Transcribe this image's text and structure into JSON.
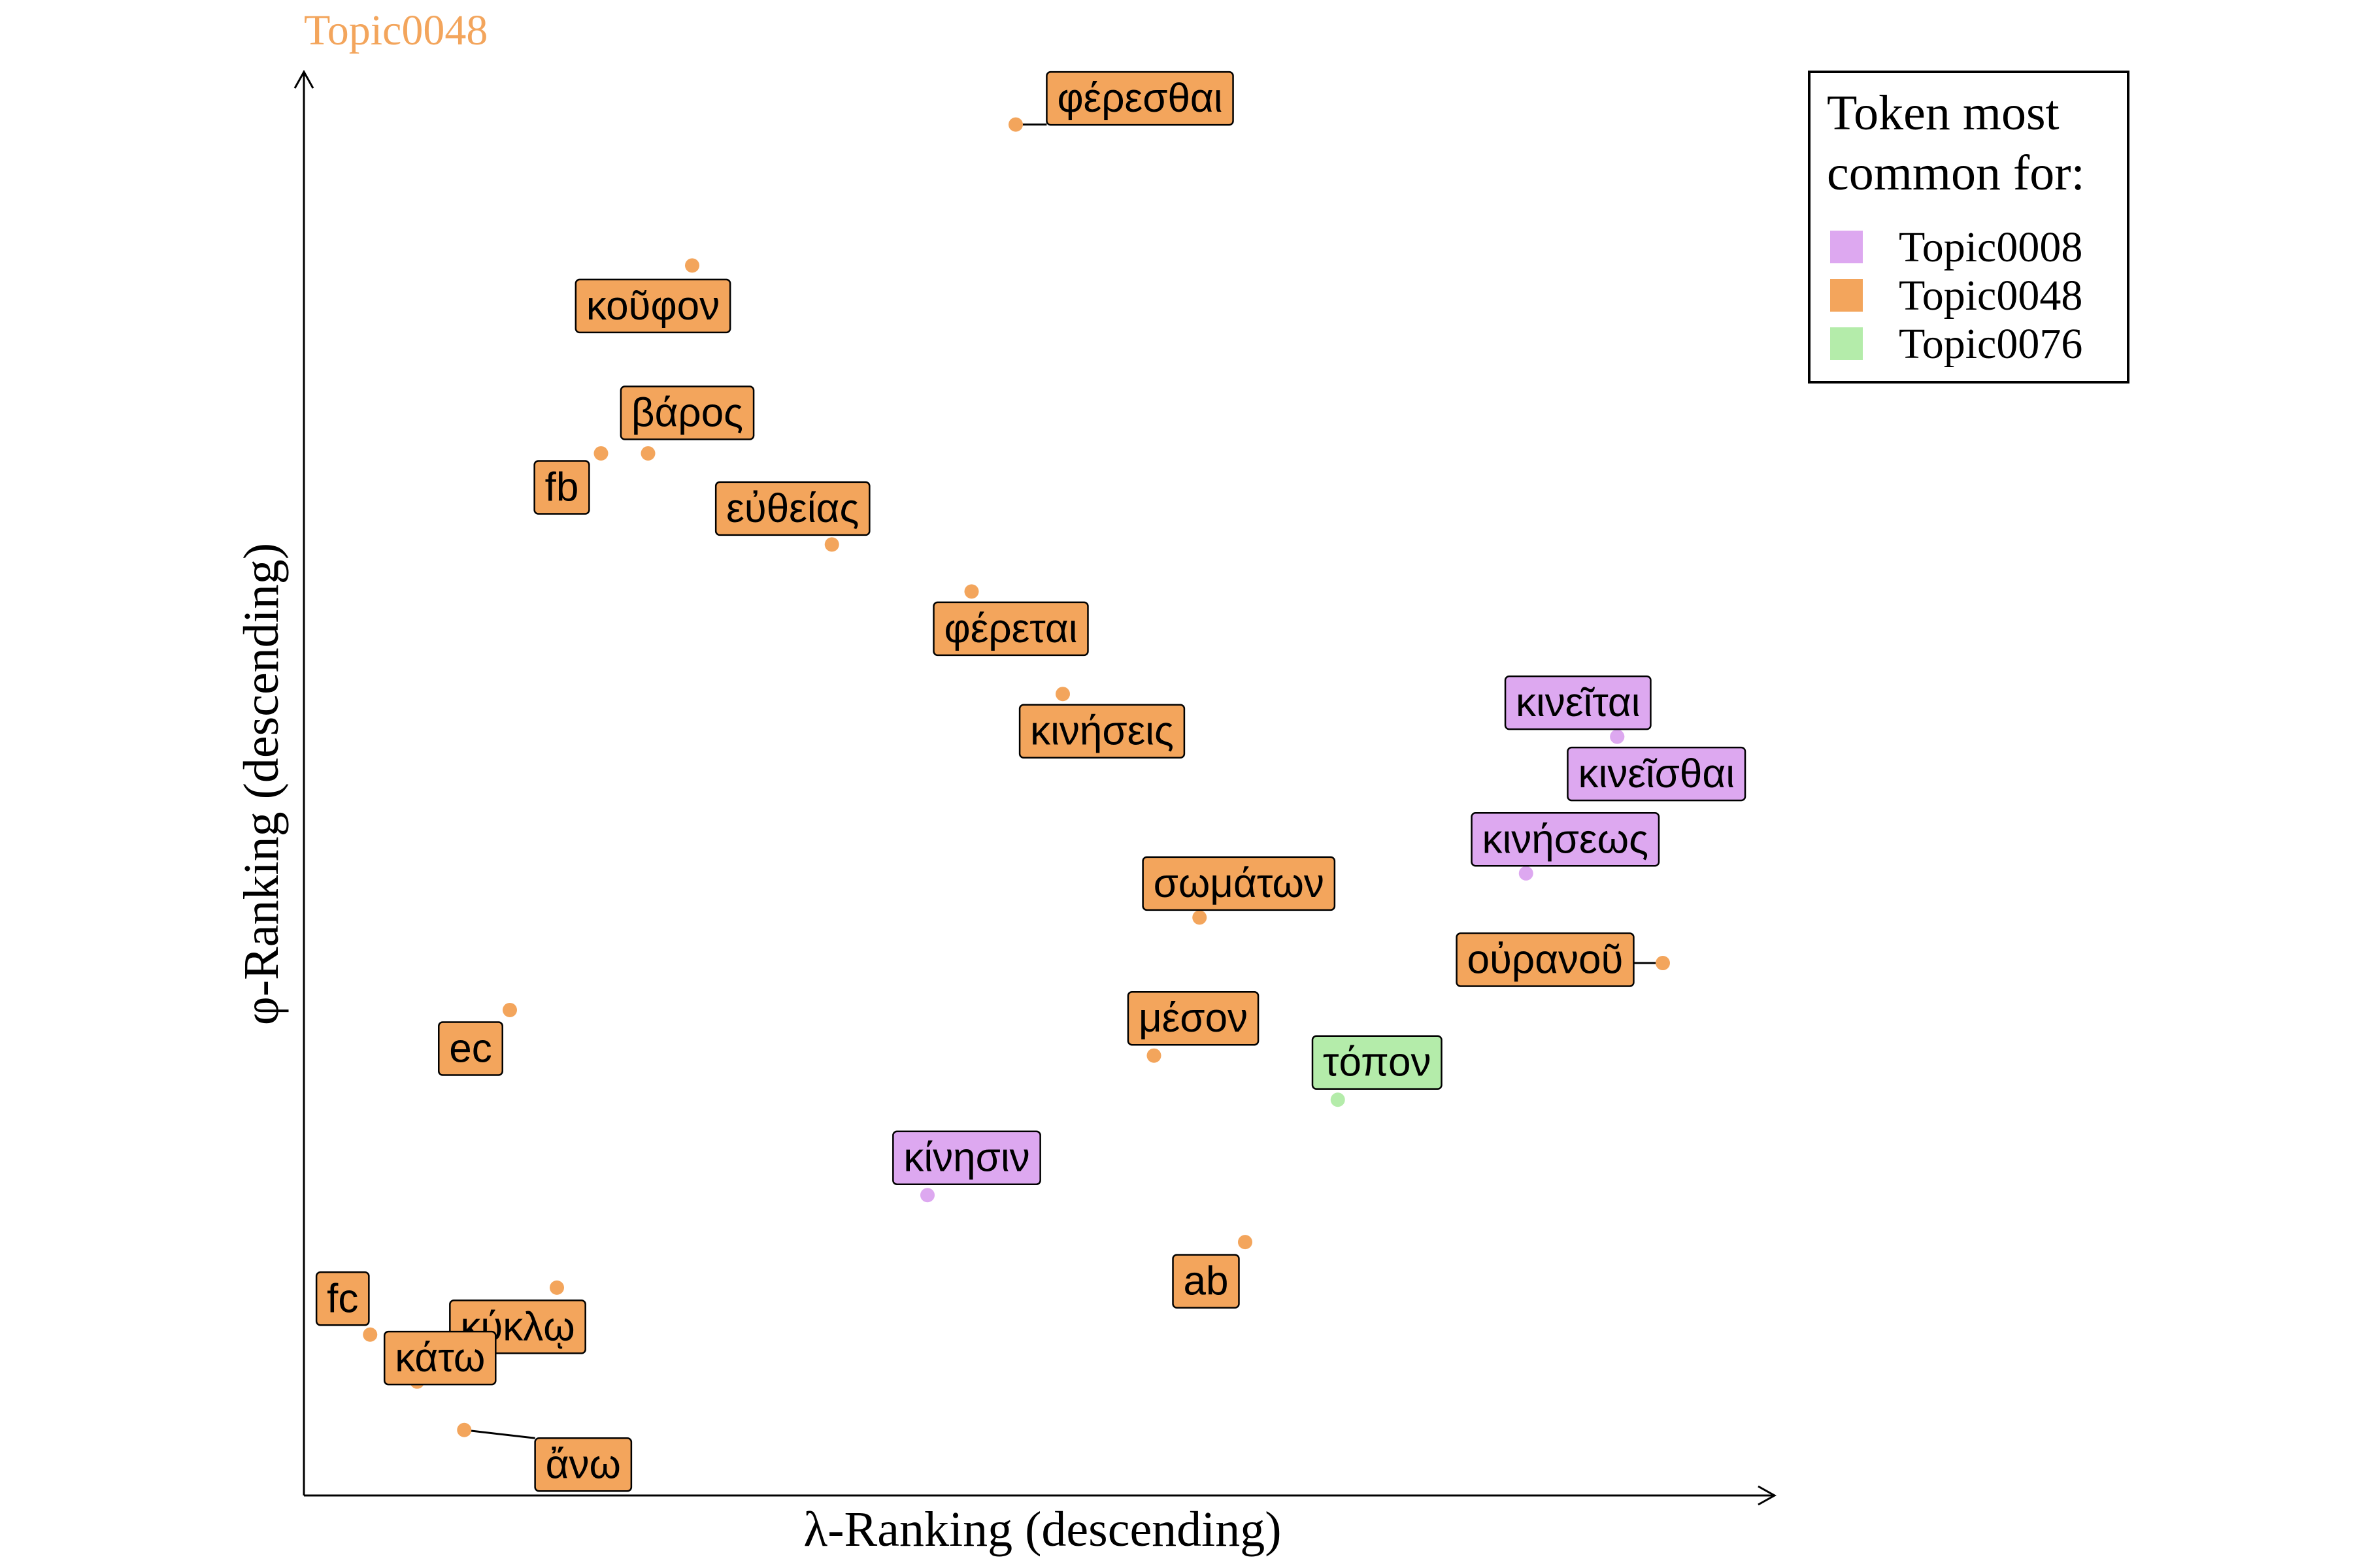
{
  "chart_data": {
    "type": "scatter",
    "title": "Topic0048",
    "xlabel": "λ-Ranking (descending)",
    "ylabel": "φ-Ranking (descending)",
    "xlim": [
      0,
      100
    ],
    "ylim": [
      0,
      100
    ],
    "grid": false,
    "legend": {
      "title_lines": [
        "Token most",
        "common for:"
      ],
      "placement": "top-right",
      "entries": [
        {
          "name": "Topic0008",
          "color": "#dda8f0"
        },
        {
          "name": "Topic0048",
          "color": "#f3a55c"
        },
        {
          "name": "Topic0076",
          "color": "#b4ecaa"
        }
      ]
    },
    "point_color_default": "#f3a55c",
    "points": [
      {
        "label": "φέρεσθαι",
        "x": 48.4,
        "y": 96.3,
        "topic": "Topic0048"
      },
      {
        "label": "κοῦφον",
        "x": 26.4,
        "y": 86.4,
        "topic": "Topic0048"
      },
      {
        "label": "βάρος",
        "x": 23.4,
        "y": 73.2,
        "topic": "Topic0048"
      },
      {
        "label": "fb",
        "x": 20.2,
        "y": 73.2,
        "topic": "Topic0048"
      },
      {
        "label": "εὐθείας",
        "x": 35.9,
        "y": 66.8,
        "topic": "Topic0048"
      },
      {
        "label": "φέρεται",
        "x": 45.4,
        "y": 63.5,
        "topic": "Topic0048"
      },
      {
        "label": "κινήσεις",
        "x": 51.6,
        "y": 56.3,
        "topic": "Topic0048"
      },
      {
        "label": "κινεῖται",
        "x": 89.3,
        "y": 53.3,
        "topic": "Topic0008"
      },
      {
        "label": "κινεῖσθαι",
        "x": 89.3,
        "y": 53.3,
        "topic": "Topic0008"
      },
      {
        "label": "κινήσεως",
        "x": 83.1,
        "y": 43.7,
        "topic": "Topic0008"
      },
      {
        "label": "σωμάτων",
        "x": 60.9,
        "y": 40.6,
        "topic": "Topic0048"
      },
      {
        "label": "οὐρανοῦ",
        "x": 92.4,
        "y": 37.4,
        "topic": "Topic0048"
      },
      {
        "label": "ec",
        "x": 14.0,
        "y": 34.1,
        "topic": "Topic0048"
      },
      {
        "label": "μέσον",
        "x": 57.8,
        "y": 30.9,
        "topic": "Topic0048"
      },
      {
        "label": "τόπον",
        "x": 70.3,
        "y": 27.8,
        "topic": "Topic0076"
      },
      {
        "label": "κίνησιν",
        "x": 42.4,
        "y": 21.1,
        "topic": "Topic0008"
      },
      {
        "label": "ab",
        "x": 64.0,
        "y": 17.8,
        "topic": "Topic0048"
      },
      {
        "label": "κύκλῳ",
        "x": 17.2,
        "y": 14.6,
        "topic": "Topic0048"
      },
      {
        "label": "fc",
        "x": 4.5,
        "y": 11.3,
        "topic": "Topic0048"
      },
      {
        "label": "κάτω",
        "x": 7.7,
        "y": 8.0,
        "topic": "Topic0048"
      },
      {
        "label": "ἄνω",
        "x": 10.9,
        "y": 4.6,
        "topic": "Topic0048"
      }
    ]
  }
}
